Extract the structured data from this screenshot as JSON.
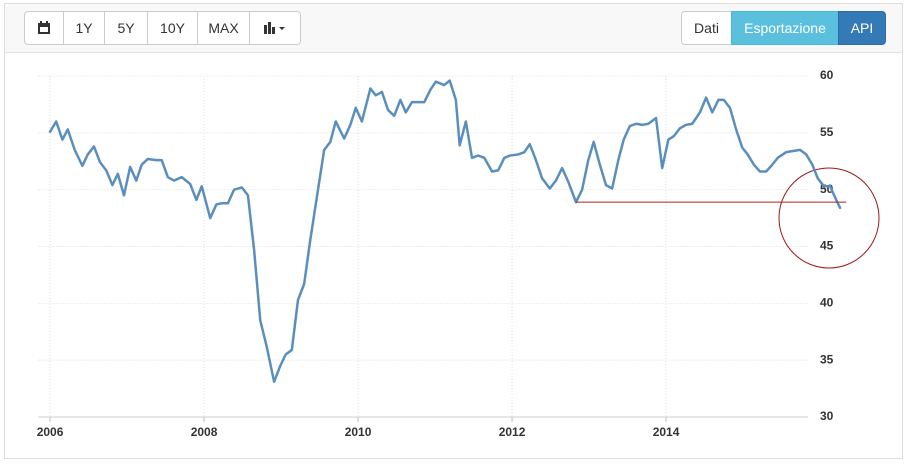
{
  "toolbar": {
    "range_buttons": [
      "1Y",
      "5Y",
      "10Y",
      "MAX"
    ],
    "view_buttons": [
      "Dati",
      "Esportazione",
      "API"
    ]
  },
  "chart_data": {
    "type": "line",
    "x": [
      2006.0,
      2006.08,
      2006.16,
      2006.23,
      2006.32,
      2006.42,
      2006.49,
      2006.57,
      2006.65,
      2006.73,
      2006.81,
      2006.88,
      2006.96,
      2007.04,
      2007.12,
      2007.19,
      2007.27,
      2007.38,
      2007.45,
      2007.53,
      2007.61,
      2007.71,
      2007.82,
      2007.9,
      2007.97,
      2008.08,
      2008.16,
      2008.23,
      2008.31,
      2008.39,
      2008.49,
      2008.57,
      2008.65,
      2008.73,
      2008.81,
      2008.91,
      2008.99,
      2009.06,
      2009.14,
      2009.22,
      2009.3,
      2009.38,
      2009.48,
      2009.56,
      2009.64,
      2009.71,
      2009.82,
      2009.9,
      2009.97,
      2010.05,
      2010.16,
      2010.23,
      2010.31,
      2010.39,
      2010.47,
      2010.55,
      2010.62,
      2010.7,
      2010.78,
      2010.86,
      2010.94,
      2011.01,
      2011.12,
      2011.19,
      2011.27,
      2011.32,
      2011.4,
      2011.48,
      2011.56,
      2011.64,
      2011.74,
      2011.82,
      2011.9,
      2011.97,
      2012.08,
      2012.16,
      2012.23,
      2012.31,
      2012.39,
      2012.49,
      2012.57,
      2012.65,
      2012.73,
      2012.83,
      2012.91,
      2012.99,
      2013.06,
      2013.14,
      2013.22,
      2013.3,
      2013.38,
      2013.45,
      2013.53,
      2013.61,
      2013.69,
      2013.77,
      2013.87,
      2013.95,
      2014.03,
      2014.1,
      2014.18,
      2014.26,
      2014.34,
      2014.44,
      2014.52,
      2014.6,
      2014.68,
      2014.75,
      2014.83,
      2014.91,
      2014.99,
      2015.06,
      2015.14,
      2015.22,
      2015.3,
      2015.38,
      2015.45,
      2015.56,
      2015.74,
      2015.82,
      2015.9,
      2015.97,
      2016.05,
      2016.13,
      2016.21,
      2016.26
    ],
    "series": [
      {
        "color": "#5a8fbd",
        "values": [
          55.1,
          56.0,
          54.4,
          55.3,
          53.5,
          52.1,
          53.1,
          53.8,
          52.4,
          51.7,
          50.4,
          51.4,
          49.5,
          52.0,
          50.8,
          52.2,
          52.7,
          52.6,
          52.6,
          51.1,
          50.8,
          51.1,
          50.5,
          49.1,
          50.3,
          47.5,
          48.7,
          48.8,
          48.8,
          50.0,
          50.2,
          49.5,
          44.7,
          38.5,
          36.3,
          33.1,
          34.5,
          35.5,
          35.9,
          40.3,
          41.7,
          45.6,
          50.0,
          53.5,
          54.2,
          56.0,
          54.5,
          55.7,
          57.2,
          56.0,
          58.9,
          58.3,
          58.6,
          57.0,
          56.5,
          57.9,
          56.8,
          57.7,
          57.7,
          57.7,
          58.8,
          59.5,
          59.2,
          59.6,
          57.9,
          53.9,
          56.0,
          52.8,
          53.0,
          52.8,
          51.6,
          51.7,
          52.8,
          53.0,
          53.1,
          53.3,
          54.0,
          52.6,
          51.0,
          50.1,
          50.8,
          51.9,
          50.7,
          48.9,
          50.0,
          52.6,
          54.2,
          52.2,
          50.4,
          50.1,
          52.6,
          54.4,
          55.6,
          55.8,
          55.7,
          55.8,
          56.3,
          51.9,
          54.4,
          54.7,
          55.4,
          55.7,
          55.8,
          56.8,
          58.1,
          56.8,
          57.9,
          57.9,
          57.2,
          55.3,
          53.7,
          53.1,
          52.2,
          51.6,
          51.6,
          52.2,
          52.8,
          53.3,
          53.5,
          53.1,
          52.2,
          51.0,
          50.3,
          50.3,
          49.1,
          48.4
        ]
      }
    ],
    "xlim": [
      2005.85,
      2016.35
    ],
    "xticks": [
      2006,
      2008,
      2010,
      2012,
      2014
    ],
    "ylim": [
      30,
      60
    ],
    "yticks": [
      30,
      35,
      40,
      45,
      50,
      55,
      60
    ],
    "grid": true,
    "reference_line": {
      "value": 48.9,
      "x": [
        2012.83,
        2016.34
      ],
      "color": "#b22222"
    }
  }
}
